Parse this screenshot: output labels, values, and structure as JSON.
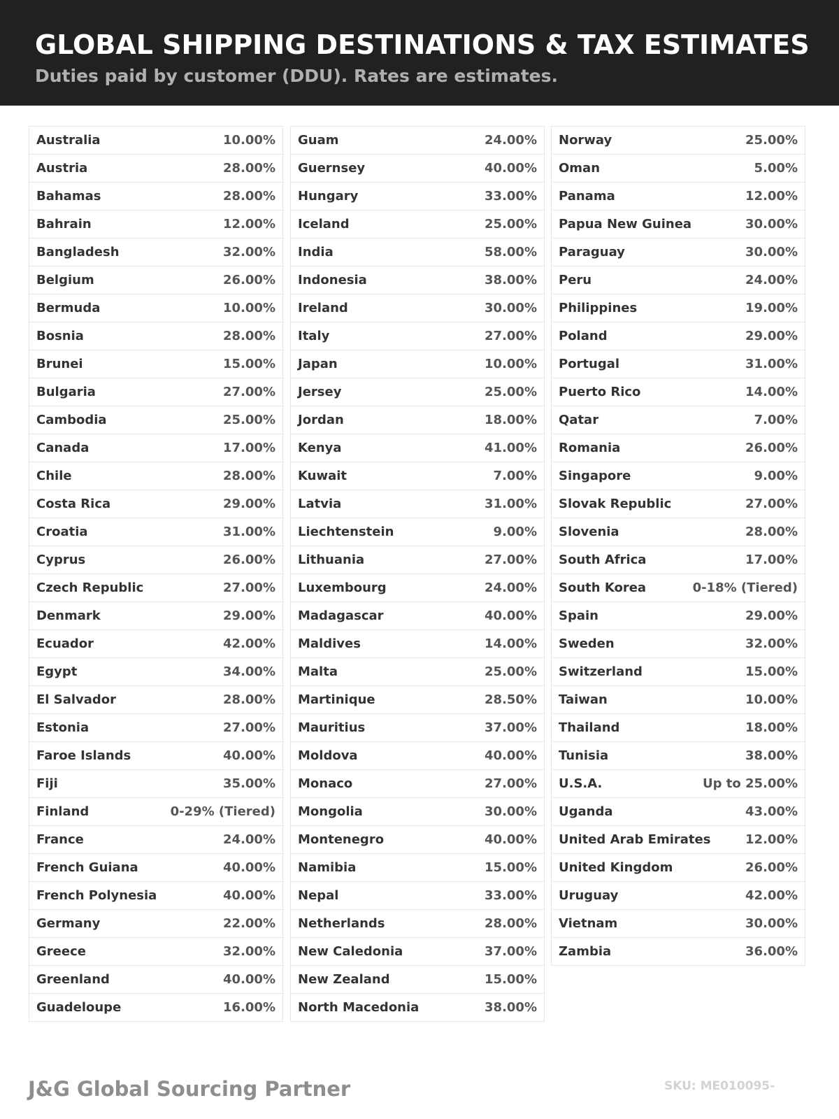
{
  "header": {
    "title": "GLOBAL SHIPPING DESTINATIONS & TAX ESTIMATES",
    "subtitle": "Duties paid by customer (DDU). Rates are estimates."
  },
  "columns": [
    [
      [
        "Australia",
        "10.00%"
      ],
      [
        "Austria",
        "28.00%"
      ],
      [
        "Bahamas",
        "28.00%"
      ],
      [
        "Bahrain",
        "12.00%"
      ],
      [
        "Bangladesh",
        "32.00%"
      ],
      [
        "Belgium",
        "26.00%"
      ],
      [
        "Bermuda",
        "10.00%"
      ],
      [
        "Bosnia",
        "28.00%"
      ],
      [
        "Brunei",
        "15.00%"
      ],
      [
        "Bulgaria",
        "27.00%"
      ],
      [
        "Cambodia",
        "25.00%"
      ],
      [
        "Canada",
        "17.00%"
      ],
      [
        "Chile",
        "28.00%"
      ],
      [
        "Costa Rica",
        "29.00%"
      ],
      [
        "Croatia",
        "31.00%"
      ],
      [
        "Cyprus",
        "26.00%"
      ],
      [
        "Czech Republic",
        "27.00%"
      ],
      [
        "Denmark",
        "29.00%"
      ],
      [
        "Ecuador",
        "42.00%"
      ],
      [
        "Egypt",
        "34.00%"
      ],
      [
        "El Salvador",
        "28.00%"
      ],
      [
        "Estonia",
        "27.00%"
      ],
      [
        "Faroe Islands",
        "40.00%"
      ],
      [
        "Fiji",
        "35.00%"
      ],
      [
        "Finland",
        "0-29% (Tiered)"
      ],
      [
        "France",
        "24.00%"
      ],
      [
        "French Guiana",
        "40.00%"
      ],
      [
        "French Polynesia",
        "40.00%"
      ],
      [
        "Germany",
        "22.00%"
      ],
      [
        "Greece",
        "32.00%"
      ],
      [
        "Greenland",
        "40.00%"
      ],
      [
        "Guadeloupe",
        "16.00%"
      ]
    ],
    [
      [
        "Guam",
        "24.00%"
      ],
      [
        "Guernsey",
        "40.00%"
      ],
      [
        "Hungary",
        "33.00%"
      ],
      [
        "Iceland",
        "25.00%"
      ],
      [
        "India",
        "58.00%"
      ],
      [
        "Indonesia",
        "38.00%"
      ],
      [
        "Ireland",
        "30.00%"
      ],
      [
        "Italy",
        "27.00%"
      ],
      [
        "Japan",
        "10.00%"
      ],
      [
        "Jersey",
        "25.00%"
      ],
      [
        "Jordan",
        "18.00%"
      ],
      [
        "Kenya",
        "41.00%"
      ],
      [
        "Kuwait",
        "7.00%"
      ],
      [
        "Latvia",
        "31.00%"
      ],
      [
        "Liechtenstein",
        "9.00%"
      ],
      [
        "Lithuania",
        "27.00%"
      ],
      [
        "Luxembourg",
        "24.00%"
      ],
      [
        "Madagascar",
        "40.00%"
      ],
      [
        "Maldives",
        "14.00%"
      ],
      [
        "Malta",
        "25.00%"
      ],
      [
        "Martinique",
        "28.50%"
      ],
      [
        "Mauritius",
        "37.00%"
      ],
      [
        "Moldova",
        "40.00%"
      ],
      [
        "Monaco",
        "27.00%"
      ],
      [
        "Mongolia",
        "30.00%"
      ],
      [
        "Montenegro",
        "40.00%"
      ],
      [
        "Namibia",
        "15.00%"
      ],
      [
        "Nepal",
        "33.00%"
      ],
      [
        "Netherlands",
        "28.00%"
      ],
      [
        "New Caledonia",
        "37.00%"
      ],
      [
        "New Zealand",
        "15.00%"
      ],
      [
        "North Macedonia",
        "38.00%"
      ]
    ],
    [
      [
        "Norway",
        "25.00%"
      ],
      [
        "Oman",
        "5.00%"
      ],
      [
        "Panama",
        "12.00%"
      ],
      [
        "Papua New Guinea",
        "30.00%"
      ],
      [
        "Paraguay",
        "30.00%"
      ],
      [
        "Peru",
        "24.00%"
      ],
      [
        "Philippines",
        "19.00%"
      ],
      [
        "Poland",
        "29.00%"
      ],
      [
        "Portugal",
        "31.00%"
      ],
      [
        "Puerto Rico",
        "14.00%"
      ],
      [
        "Qatar",
        "7.00%"
      ],
      [
        "Romania",
        "26.00%"
      ],
      [
        "Singapore",
        "9.00%"
      ],
      [
        "Slovak Republic",
        "27.00%"
      ],
      [
        "Slovenia",
        "28.00%"
      ],
      [
        "South Africa",
        "17.00%"
      ],
      [
        "South Korea",
        "0-18% (Tiered)"
      ],
      [
        "Spain",
        "29.00%"
      ],
      [
        "Sweden",
        "32.00%"
      ],
      [
        "Switzerland",
        "15.00%"
      ],
      [
        "Taiwan",
        "10.00%"
      ],
      [
        "Thailand",
        "18.00%"
      ],
      [
        "Tunisia",
        "38.00%"
      ],
      [
        "U.S.A.",
        "Up to 25.00%"
      ],
      [
        "Uganda",
        "43.00%"
      ],
      [
        "United Arab Emirates",
        "12.00%"
      ],
      [
        "United Kingdom",
        "26.00%"
      ],
      [
        "Uruguay",
        "42.00%"
      ],
      [
        "Vietnam",
        "30.00%"
      ],
      [
        "Zambia",
        "36.00%"
      ]
    ]
  ],
  "footer": {
    "brand": "J&G Global Sourcing Partner",
    "sku": "SKU: ME010095-"
  }
}
